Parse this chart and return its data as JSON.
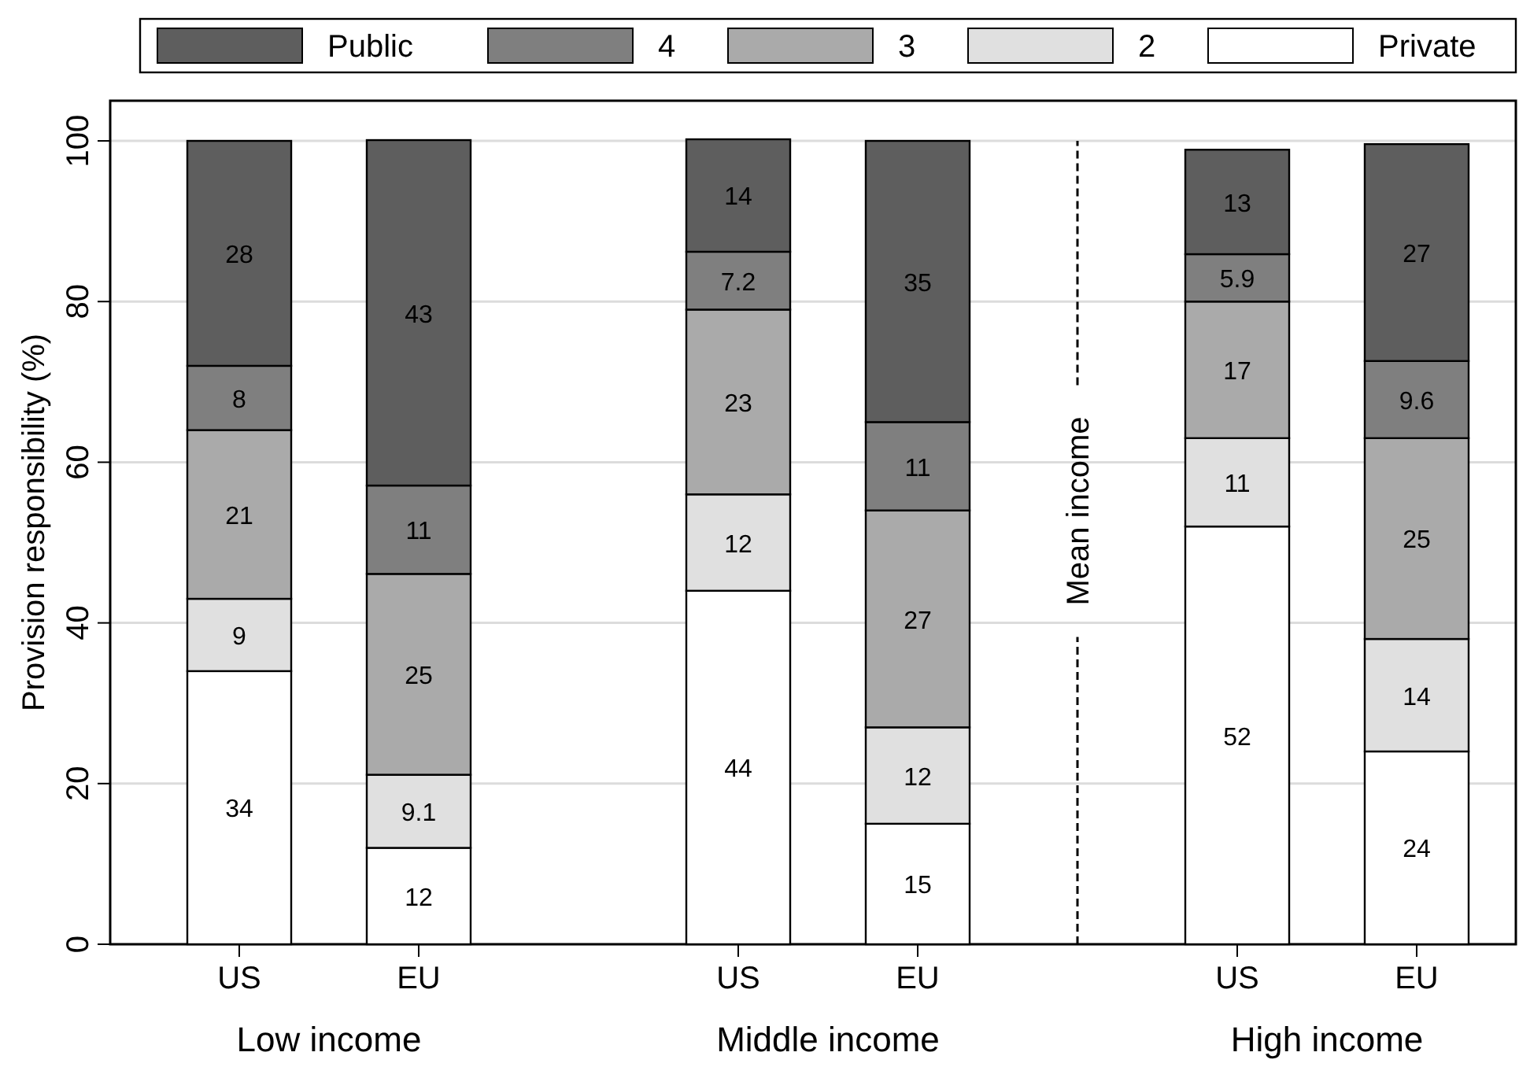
{
  "chart_data": {
    "type": "bar",
    "stacked": true,
    "ylabel": "Provision responsibility (%)",
    "categories": [
      "US",
      "EU",
      "US",
      "EU",
      "US",
      "EU"
    ],
    "series": [
      {
        "name": "Private",
        "color": "#ffffff",
        "values": [
          34,
          12,
          44,
          15,
          52,
          24
        ]
      },
      {
        "name": "2",
        "color": "#e0e0e0",
        "values": [
          9,
          9.1,
          12,
          12,
          11,
          14
        ]
      },
      {
        "name": "3",
        "color": "#aaaaaa",
        "values": [
          21,
          25,
          23,
          27,
          17,
          25
        ]
      },
      {
        "name": "4",
        "color": "#7f7f7f",
        "values": [
          8,
          11,
          7.2,
          11,
          5.9,
          9.6
        ]
      },
      {
        "name": "Public",
        "color": "#5e5e5e",
        "values": [
          28,
          43,
          14,
          35,
          13,
          27
        ]
      }
    ],
    "data_labels": true,
    "ylim": [
      0,
      105
    ],
    "yticks": [
      0,
      20,
      40,
      60,
      80,
      100
    ],
    "grid": "y",
    "legend": "top",
    "annotations": [
      "Low income",
      "Middle income",
      "High income",
      "Mean income"
    ]
  }
}
